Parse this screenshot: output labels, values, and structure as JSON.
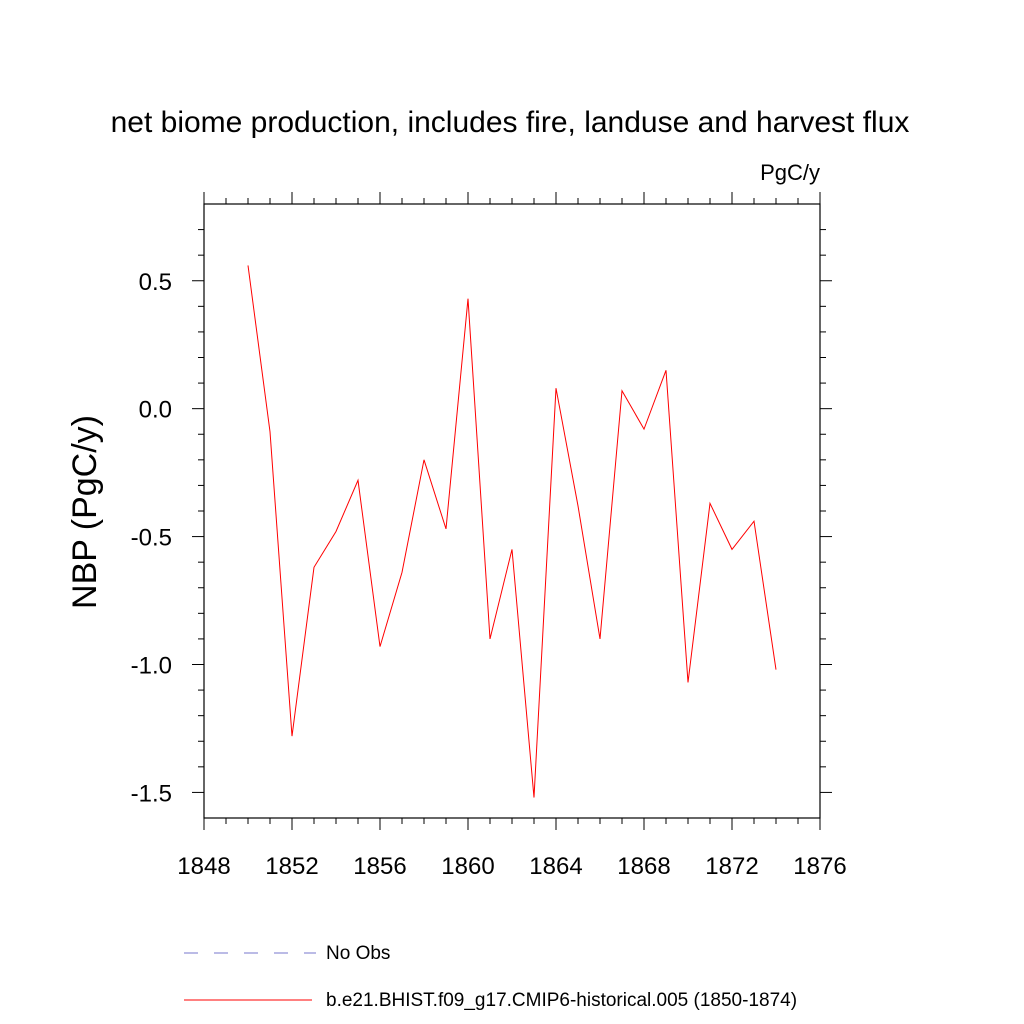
{
  "chart_data": {
    "type": "line",
    "title": "net biome production, includes fire, landuse and harvest flux",
    "units_label": "PgC/y",
    "ylabel": "NBP  (PgC/y)",
    "xlabel": "",
    "xlim": [
      1848,
      1876
    ],
    "ylim": [
      -1.6,
      0.8
    ],
    "x_ticks": [
      1848,
      1852,
      1856,
      1860,
      1864,
      1868,
      1872,
      1876
    ],
    "x_tick_labels": [
      "1848",
      "1852",
      "1856",
      "1860",
      "1864",
      "1868",
      "1872",
      "1876"
    ],
    "y_ticks": [
      -1.5,
      -1.0,
      -0.5,
      0.0,
      0.5
    ],
    "y_tick_labels": [
      "-1.5",
      "-1.0",
      "-0.5",
      "0.0",
      "0.5"
    ],
    "grid": false,
    "legend_position": "bottom",
    "series": [
      {
        "name": "b.e21.BHIST.f09_g17.CMIP6-historical.005 (1850-1874)",
        "color": "#ff0000",
        "style": "solid",
        "x": [
          1850,
          1851,
          1852,
          1853,
          1854,
          1855,
          1856,
          1857,
          1858,
          1859,
          1860,
          1861,
          1862,
          1863,
          1864,
          1865,
          1866,
          1867,
          1868,
          1869,
          1870,
          1871,
          1872,
          1873,
          1874
        ],
        "y": [
          0.56,
          -0.09,
          -1.28,
          -0.62,
          -0.48,
          -0.28,
          -0.93,
          -0.64,
          -0.2,
          -0.47,
          0.43,
          -0.9,
          -0.55,
          -1.52,
          0.08,
          -0.38,
          -0.9,
          0.07,
          -0.08,
          0.15,
          -1.07,
          -0.37,
          -0.55,
          -0.44,
          -1.02
        ]
      }
    ],
    "legend_entries": [
      {
        "label": "No Obs",
        "color": "#7777cc",
        "style": "dashed"
      },
      {
        "label": "b.e21.BHIST.f09_g17.CMIP6-historical.005 (1850-1874)",
        "color": "#ff0000",
        "style": "solid"
      }
    ]
  }
}
